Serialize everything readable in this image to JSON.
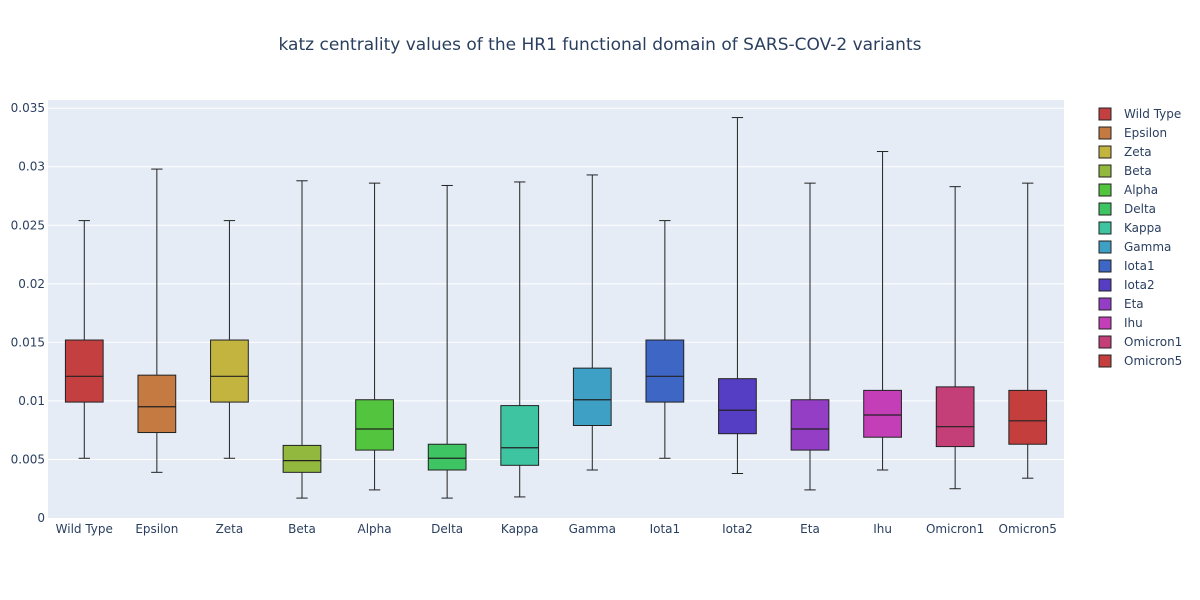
{
  "chart_data": {
    "type": "box",
    "title": "katz centrality values of the HR1 functional domain of SARS-COV-2 variants",
    "xlabel": "",
    "ylabel": "",
    "ylim": [
      0,
      0.0357
    ],
    "yticks": [
      0,
      0.005,
      0.01,
      0.015,
      0.02,
      0.025,
      0.03,
      0.035
    ],
    "ytick_labels": [
      "0",
      "0.005",
      "0.01",
      "0.015",
      "0.02",
      "0.025",
      "0.03",
      "0.035"
    ],
    "grid": true,
    "legend_position": "right",
    "categories": [
      "Wild Type",
      "Epsilon",
      "Zeta",
      "Beta",
      "Alpha",
      "Delta",
      "Kappa",
      "Gamma",
      "Iota1",
      "Iota2",
      "Eta",
      "Ihu",
      "Omicron1",
      "Omicron5"
    ],
    "series": [
      {
        "name": "Wild Type",
        "color": "#c44040",
        "min": 0.0051,
        "q1": 0.0099,
        "median": 0.0121,
        "q3": 0.0152,
        "max": 0.0254
      },
      {
        "name": "Epsilon",
        "color": "#c47a40",
        "min": 0.0039,
        "q1": 0.0073,
        "median": 0.0095,
        "q3": 0.0122,
        "max": 0.0298
      },
      {
        "name": "Zeta",
        "color": "#c2b43e",
        "min": 0.0051,
        "q1": 0.0099,
        "median": 0.0121,
        "q3": 0.0152,
        "max": 0.0254
      },
      {
        "name": "Beta",
        "color": "#93b83e",
        "min": 0.0017,
        "q1": 0.0039,
        "median": 0.0049,
        "q3": 0.0062,
        "max": 0.0288
      },
      {
        "name": "Alpha",
        "color": "#52c43e",
        "min": 0.0024,
        "q1": 0.0058,
        "median": 0.0076,
        "q3": 0.0101,
        "max": 0.0286
      },
      {
        "name": "Delta",
        "color": "#3ec462",
        "min": 0.0017,
        "q1": 0.0041,
        "median": 0.0051,
        "q3": 0.0063,
        "max": 0.0284
      },
      {
        "name": "Kappa",
        "color": "#3ec4a0",
        "min": 0.0018,
        "q1": 0.0045,
        "median": 0.006,
        "q3": 0.0096,
        "max": 0.0287
      },
      {
        "name": "Gamma",
        "color": "#3ea0c4",
        "min": 0.0041,
        "q1": 0.0079,
        "median": 0.0101,
        "q3": 0.0128,
        "max": 0.0293
      },
      {
        "name": "Iota1",
        "color": "#3e66c4",
        "min": 0.0051,
        "q1": 0.0099,
        "median": 0.0121,
        "q3": 0.0152,
        "max": 0.0254
      },
      {
        "name": "Iota2",
        "color": "#553ec4",
        "min": 0.0038,
        "q1": 0.0072,
        "median": 0.0092,
        "q3": 0.0119,
        "max": 0.0342
      },
      {
        "name": "Eta",
        "color": "#933ec4",
        "min": 0.0024,
        "q1": 0.0058,
        "median": 0.0076,
        "q3": 0.0101,
        "max": 0.0286
      },
      {
        "name": "Ihu",
        "color": "#c43eb8",
        "min": 0.0041,
        "q1": 0.0069,
        "median": 0.0088,
        "q3": 0.0109,
        "max": 0.0313
      },
      {
        "name": "Omicron1",
        "color": "#c43e78",
        "min": 0.0025,
        "q1": 0.0061,
        "median": 0.0078,
        "q3": 0.0112,
        "max": 0.0283
      },
      {
        "name": "Omicron5",
        "color": "#c43e3e",
        "min": 0.0034,
        "q1": 0.0063,
        "median": 0.0083,
        "q3": 0.0109,
        "max": 0.0286
      }
    ]
  }
}
